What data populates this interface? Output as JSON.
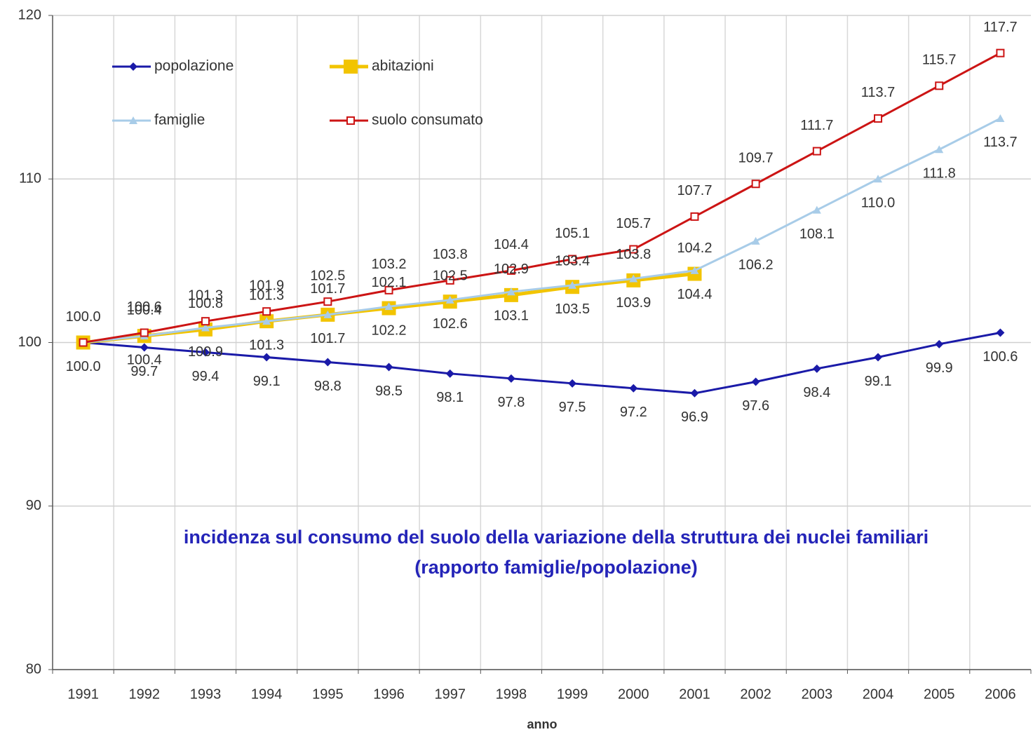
{
  "chart_data": {
    "type": "line",
    "categories": [
      "1991",
      "1992",
      "1993",
      "1994",
      "1995",
      "1996",
      "1997",
      "1998",
      "1999",
      "2000",
      "2001",
      "2002",
      "2003",
      "2004",
      "2005",
      "2006"
    ],
    "x_label": "anno",
    "annotation": [
      "incidenza sul consumo del suolo della variazione della struttura dei nuclei familiari",
      "(rapporto famiglie/popolazione)"
    ],
    "ylim": [
      80,
      120
    ],
    "yticks": [
      80,
      90,
      100,
      110,
      120
    ],
    "grid": true,
    "legend": "upper left",
    "series": [
      {
        "name": "popolazione",
        "color": "#1a1aa8",
        "label_color": "#333333",
        "marker": "diamond",
        "label_side": "below",
        "values": [
          100.0,
          99.7,
          99.4,
          99.1,
          98.8,
          98.5,
          98.1,
          97.8,
          97.5,
          97.2,
          96.9,
          97.6,
          98.4,
          99.1,
          99.9,
          100.6
        ],
        "value_labels": [
          null,
          "99.7",
          "99.4",
          "99.1",
          "98.8",
          "98.5",
          "98.1",
          "97.8",
          "97.5",
          "97.2",
          "96.9",
          "97.6",
          "98.4",
          "99.1",
          "99.9",
          "100.6"
        ]
      },
      {
        "name": "abitazioni",
        "color": "#f2c400",
        "label_color": "#c8884a",
        "marker": "square",
        "label_side": "above",
        "values": [
          100.0,
          100.4,
          100.8,
          101.3,
          101.7,
          102.1,
          102.5,
          102.9,
          103.4,
          103.8,
          104.2,
          null,
          null,
          null,
          null,
          null
        ],
        "value_labels": [
          null,
          "100.4",
          "100.8",
          "101.3",
          "101.7",
          "102.1",
          "102.5",
          "102.9",
          "103.4",
          "103.8",
          "104.2",
          null,
          null,
          null,
          null,
          null
        ]
      },
      {
        "name": "famiglie",
        "color": "#a8cce8",
        "label_color": "#6a8cc0",
        "marker": "triangle",
        "label_side": "below",
        "values": [
          100.0,
          100.4,
          100.9,
          101.3,
          101.7,
          102.2,
          102.6,
          103.1,
          103.5,
          103.9,
          104.4,
          106.2,
          108.1,
          110.0,
          111.8,
          113.7
        ],
        "value_labels": [
          "100.0",
          "100.4",
          "100.9",
          "101.3",
          "101.7",
          "102.2",
          "102.6",
          "103.1",
          "103.5",
          "103.9",
          "104.4",
          "106.2",
          "108.1",
          "110.0",
          "111.8",
          "113.7"
        ]
      },
      {
        "name": "suolo consumato",
        "color": "#cc1414",
        "label_color": "#7a2020",
        "marker": "open-square",
        "label_side": "above",
        "values": [
          100.0,
          100.6,
          101.3,
          101.9,
          102.5,
          103.2,
          103.8,
          104.4,
          105.1,
          105.7,
          107.7,
          109.7,
          111.7,
          113.7,
          115.7,
          117.7
        ],
        "value_labels": [
          "100.0",
          "100.6",
          "101.3",
          "101.9",
          "102.5",
          "103.2",
          "103.8",
          "104.4",
          "105.1",
          "105.7",
          "107.7",
          "109.7",
          "111.7",
          "113.7",
          "115.7",
          "117.7"
        ]
      }
    ]
  }
}
